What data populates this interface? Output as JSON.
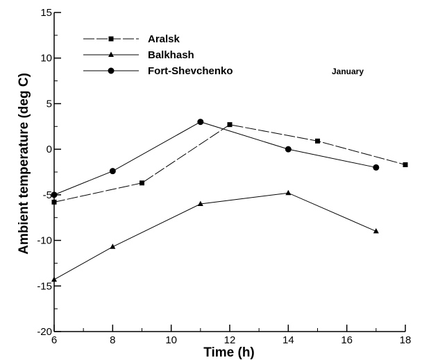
{
  "chart_data": {
    "type": "line",
    "xlabel": "Time (h)",
    "ylabel": "Ambient temperature (deg C)",
    "xlim": [
      6,
      18
    ],
    "ylim": [
      -20,
      15
    ],
    "xticks": [
      6,
      8,
      10,
      12,
      14,
      16,
      18
    ],
    "yticks": [
      -20,
      -15,
      -10,
      -5,
      0,
      5,
      10,
      15
    ],
    "grid": false,
    "legend_position": "top-left",
    "annotation": "January",
    "series": [
      {
        "name": "Aralsk",
        "marker": "square",
        "dash": "long-dash",
        "color": "#000000",
        "points": [
          [
            6,
            -5.8
          ],
          [
            9,
            -3.7
          ],
          [
            12,
            2.7
          ],
          [
            15,
            0.9
          ],
          [
            18,
            -1.7
          ]
        ]
      },
      {
        "name": "Balkhash",
        "marker": "triangle",
        "dash": "solid",
        "color": "#000000",
        "points": [
          [
            6,
            -14.3
          ],
          [
            8,
            -10.7
          ],
          [
            11,
            -6.0
          ],
          [
            14,
            -4.8
          ],
          [
            17,
            -9.0
          ]
        ]
      },
      {
        "name": "Fort-Shevchenko",
        "marker": "circle",
        "dash": "solid",
        "color": "#000000",
        "points": [
          [
            6,
            -5.0
          ],
          [
            8,
            -2.4
          ],
          [
            11,
            3.0
          ],
          [
            14,
            0.0
          ],
          [
            17,
            -2.0
          ]
        ]
      }
    ]
  }
}
